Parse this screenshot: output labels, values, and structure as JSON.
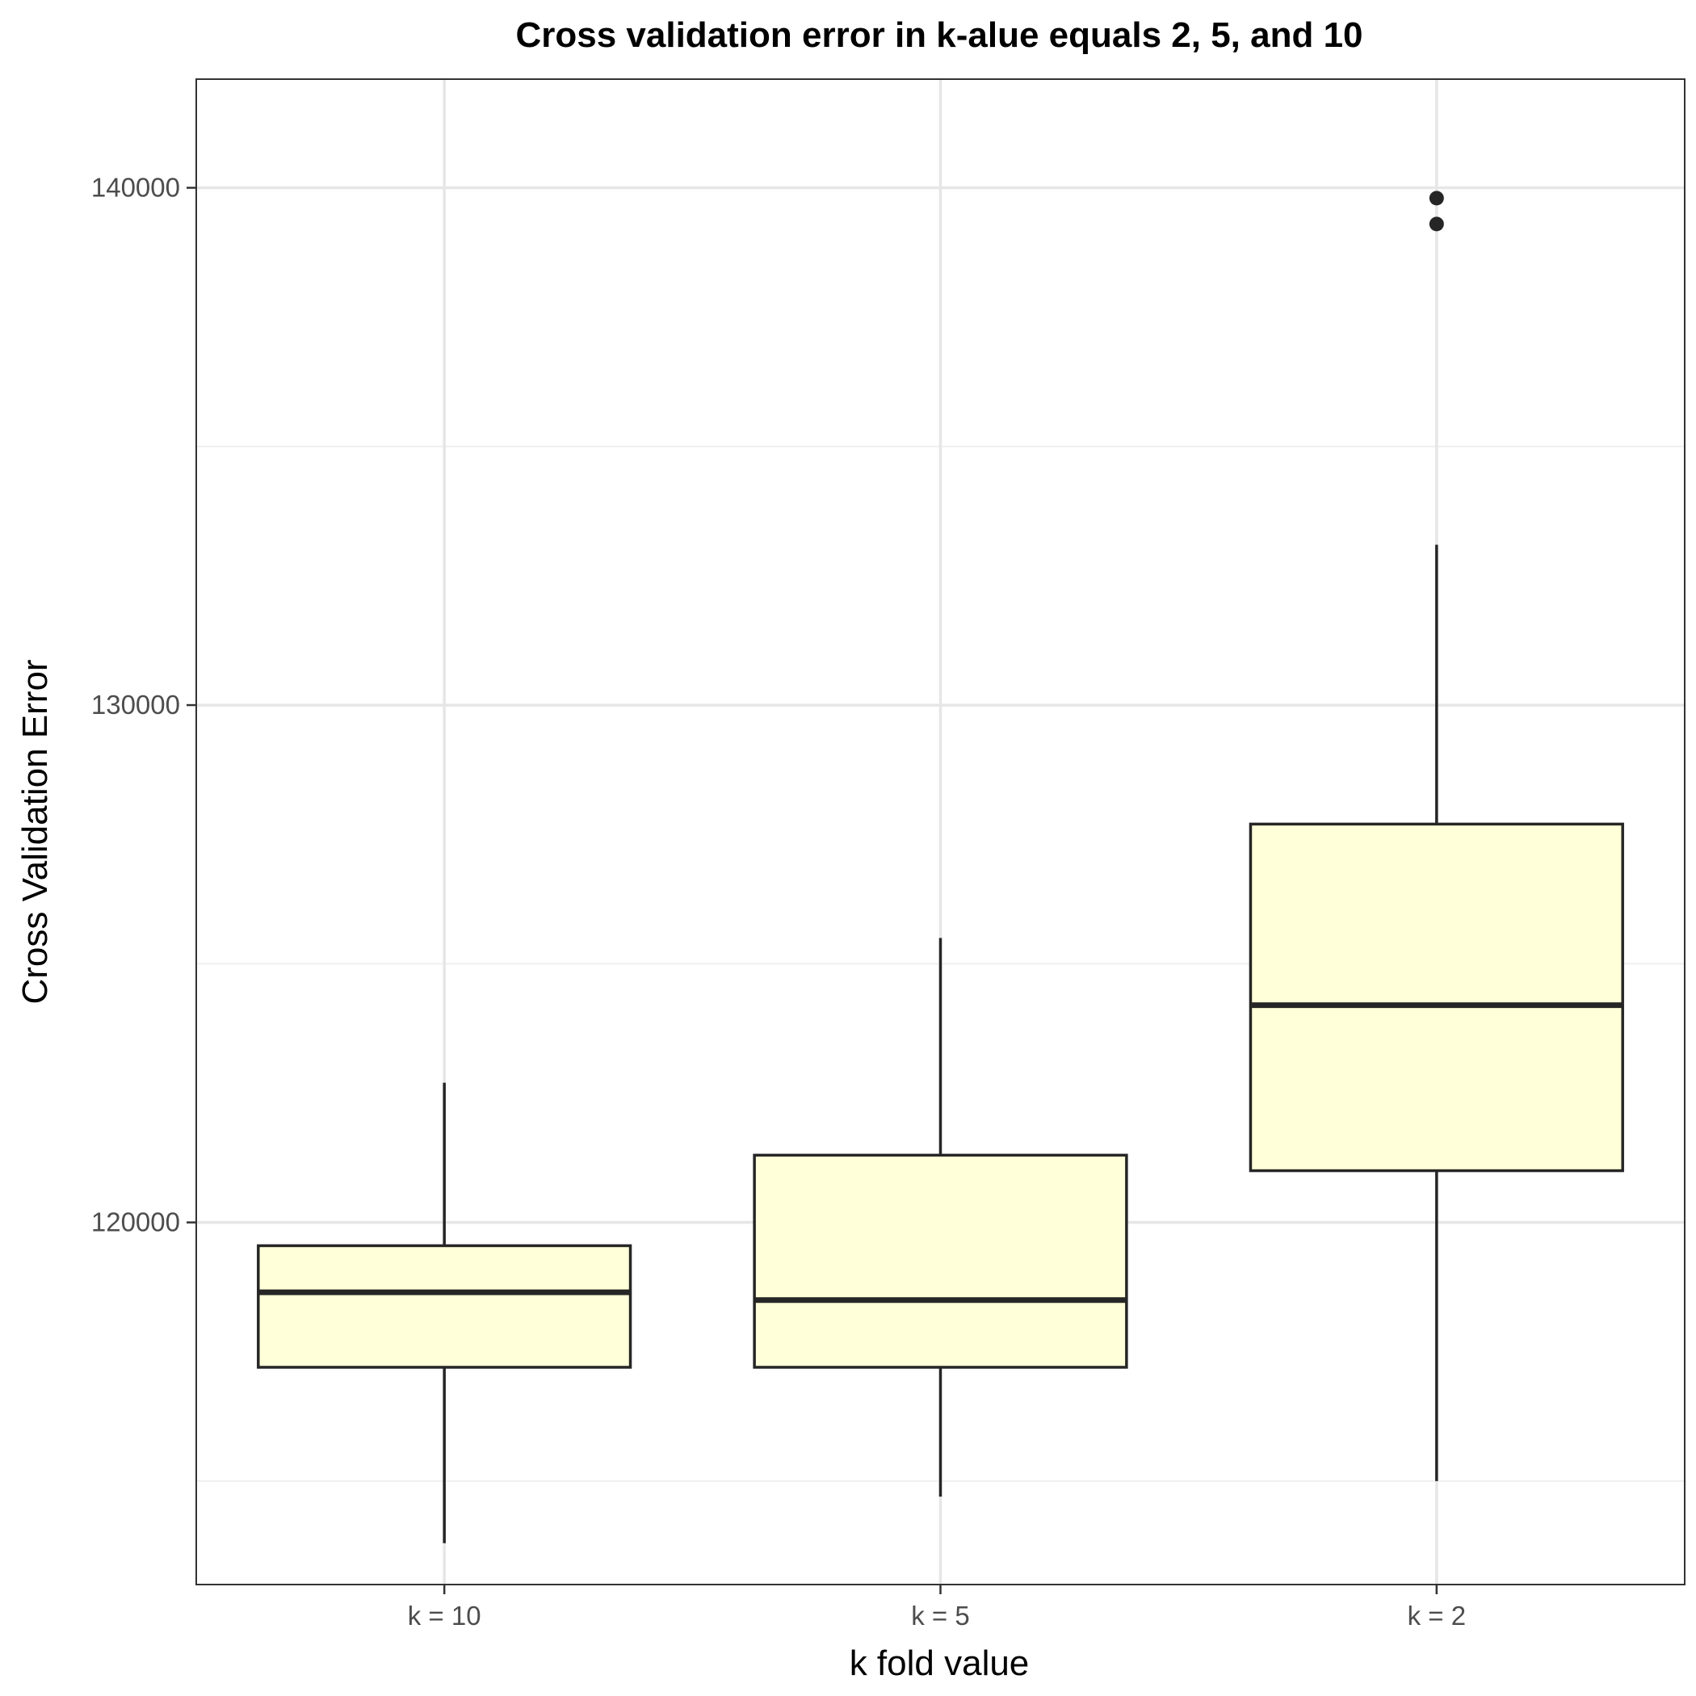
{
  "chart_data": {
    "type": "boxplot",
    "title": "Cross validation error in k-alue equals 2, 5, and 10",
    "xlabel": "k fold value",
    "ylabel": "Cross Validation Error",
    "categories": [
      "k = 10",
      "k = 5",
      "k = 2"
    ],
    "boxes": [
      {
        "category": "k = 10",
        "whisker_low": 113800,
        "q1": 117200,
        "median": 118650,
        "q3": 119550,
        "whisker_high": 122700,
        "outliers": []
      },
      {
        "category": "k = 5",
        "whisker_low": 114700,
        "q1": 117200,
        "median": 118500,
        "q3": 121300,
        "whisker_high": 125500,
        "outliers": []
      },
      {
        "category": "k = 2",
        "whisker_low": 115000,
        "q1": 121000,
        "median": 124200,
        "q3": 127700,
        "whisker_high": 133100,
        "outliers": [
          139300,
          139800
        ]
      }
    ],
    "yticks": [
      120000,
      130000,
      140000
    ],
    "yticks_minor": [
      115000,
      125000,
      135000
    ],
    "ylim": [
      113000,
      142100
    ],
    "grid": true,
    "colors": {
      "box_fill": "#ffffd9",
      "box_line": "#262626",
      "grid_major": "#e6e6e6",
      "grid_minor": "#efefef",
      "panel_border": "#333333"
    }
  }
}
